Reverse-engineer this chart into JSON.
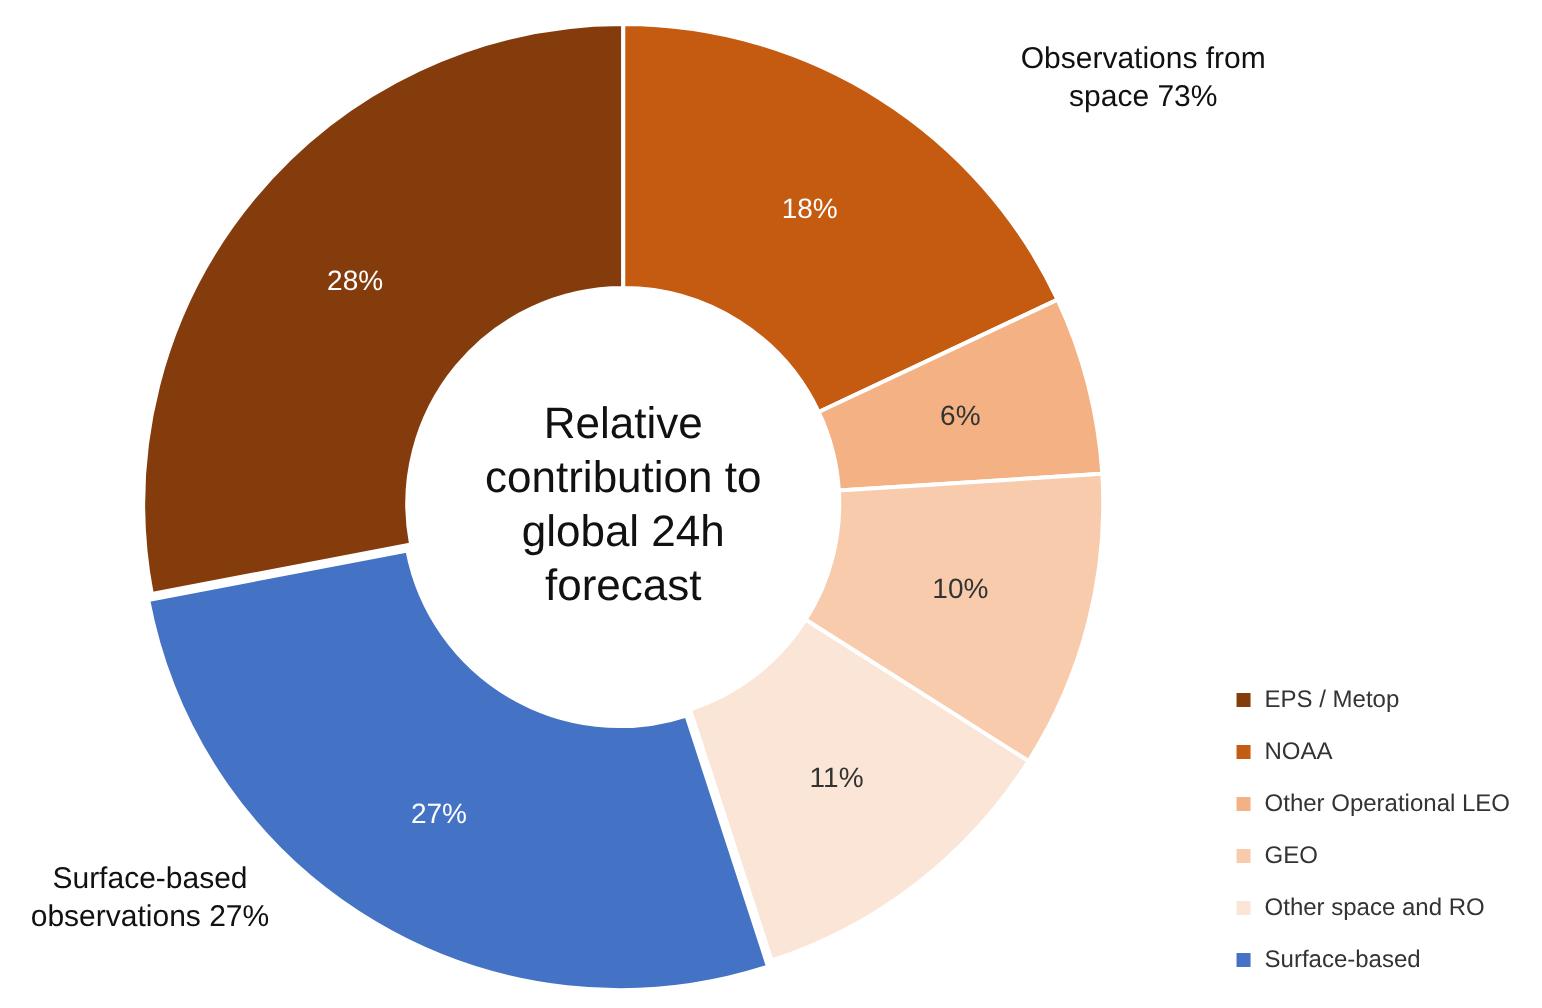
{
  "chart_data": {
    "type": "donut",
    "title": "Relative contribution to global 24h forecast",
    "categories": [
      "EPS / Metop",
      "NOAA",
      "Other Operational LEO",
      "GEO",
      "Other space and RO",
      "Surface-based"
    ],
    "values": [
      28,
      18,
      6,
      10,
      11,
      27
    ],
    "value_labels": [
      "28%",
      "18%",
      "6%",
      "10%",
      "11%",
      "27%"
    ],
    "colors": [
      "#843c0c",
      "#c55a11",
      "#f4b183",
      "#f8cbad",
      "#fbe5d6",
      "#4472c4"
    ],
    "legend": "bottom right",
    "annotations": [
      "Observations from space 73%",
      "Surface-based observations 27%"
    ]
  }
}
